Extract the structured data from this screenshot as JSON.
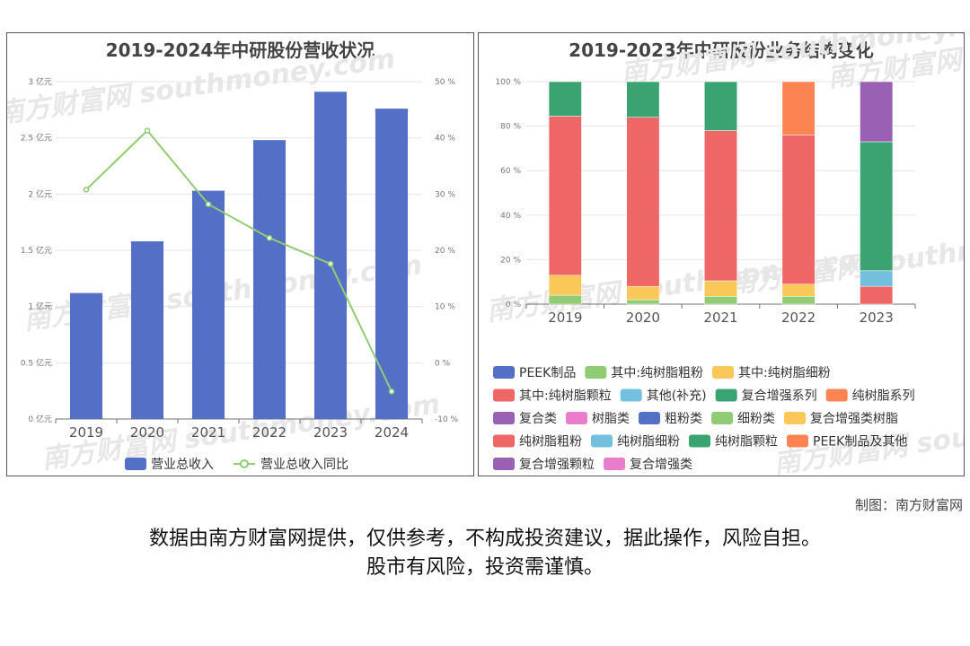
{
  "watermark": "南方财富网 southmoney.com",
  "credit": "制图：南方财富网",
  "disclaimer": {
    "line1": "数据由南方财富网提供，仅供参考，不构成投资建议，据此操作，风险自担。",
    "line2": "股市有风险，投资需谨慎。"
  },
  "colors": {
    "bar_blue": "#5470c6",
    "line_green": "#91cc75",
    "red": "#ee6666",
    "yellow": "#fac858",
    "dark_green": "#3ba272",
    "orange": "#fc8452",
    "purple": "#9a60b4",
    "sky": "#73c0de",
    "pink": "#ea7ccc"
  },
  "chart_data": [
    {
      "type": "bar",
      "title": "2019-2024年中研股份营收状况",
      "categories": [
        "2019",
        "2020",
        "2021",
        "2022",
        "2023",
        "2024"
      ],
      "y_ticks": [
        "0 亿元",
        "0.5 亿元",
        "1 亿元",
        "1.5 亿元",
        "2 亿元",
        "2.5 亿元",
        "3 亿元"
      ],
      "y2_ticks": [
        "-10 %",
        "0 %",
        "10 %",
        "20 %",
        "30 %",
        "40 %",
        "50 %"
      ],
      "ylim": [
        0,
        3
      ],
      "y2lim": [
        -10,
        50
      ],
      "grid": true,
      "legend_position": "bottom",
      "series": [
        {
          "name": "营业总收入",
          "kind": "bar",
          "axis": "left",
          "color": "#5470c6",
          "values": [
            1.12,
            1.58,
            2.03,
            2.48,
            2.91,
            2.76
          ]
        },
        {
          "name": "营业总收入同比",
          "kind": "line",
          "axis": "right",
          "color": "#91cc75",
          "values": [
            30.8,
            41.3,
            28.2,
            22.2,
            17.6,
            -5.1
          ]
        }
      ]
    },
    {
      "type": "bar",
      "stacked": true,
      "title": "2019-2023年中研股份业务结构变化",
      "categories": [
        "2019",
        "2020",
        "2021",
        "2022",
        "2023"
      ],
      "y_ticks": [
        "0 %",
        "20 %",
        "40 %",
        "60 %",
        "80 %",
        "100 %"
      ],
      "ylim": [
        0,
        100
      ],
      "grid": true,
      "legend_position": "bottom",
      "series": [
        {
          "name": "PEEK制品",
          "color": "#5470c6",
          "values": [
            0,
            0,
            0,
            0,
            0
          ]
        },
        {
          "name": "其中:纯树脂粗粉",
          "color": "#91cc75",
          "values": [
            4,
            2,
            3.5,
            3.5,
            0
          ]
        },
        {
          "name": "其中:纯树脂细粉",
          "color": "#fac858",
          "values": [
            9,
            6,
            7,
            5.5,
            0
          ]
        },
        {
          "name": "其中:纯树脂颗粒",
          "color": "#ee6666",
          "values": [
            71.5,
            76,
            67.5,
            67,
            8
          ]
        },
        {
          "name": "其他(补充)",
          "color": "#73c0de",
          "values": [
            0,
            0,
            0,
            0,
            7
          ]
        },
        {
          "name": "复合增强系列",
          "color": "#3ba272",
          "values": [
            15.5,
            16,
            22,
            0,
            58
          ]
        },
        {
          "name": "纯树脂系列",
          "color": "#fc8452",
          "values": [
            0,
            0,
            0,
            24,
            0
          ]
        },
        {
          "name": "复合类",
          "color": "#9a60b4",
          "values": [
            0,
            0,
            0,
            0,
            27
          ]
        },
        {
          "name": "树脂类",
          "color": "#ea7ccc",
          "values": [
            0,
            0,
            0,
            0,
            0
          ]
        },
        {
          "name": "粗粉类",
          "color": "#5470c6",
          "values": [
            0,
            0,
            0,
            0,
            0
          ]
        },
        {
          "name": "细粉类",
          "color": "#91cc75",
          "values": [
            0,
            0,
            0,
            0,
            0
          ]
        },
        {
          "name": "复合增强类树脂",
          "color": "#fac858",
          "values": [
            0,
            0,
            0,
            0,
            0
          ]
        },
        {
          "name": "纯树脂粗粉",
          "color": "#ee6666",
          "values": [
            0,
            0,
            0,
            0,
            0
          ]
        },
        {
          "name": "纯树脂细粉",
          "color": "#73c0de",
          "values": [
            0,
            0,
            0,
            0,
            0
          ]
        },
        {
          "name": "纯树脂颗粒",
          "color": "#3ba272",
          "values": [
            0,
            0,
            0,
            0,
            0
          ]
        },
        {
          "name": "PEEK制品及其他",
          "color": "#fc8452",
          "values": [
            0,
            0,
            0,
            0,
            0
          ]
        },
        {
          "name": "复合增强颗粒",
          "color": "#9a60b4",
          "values": [
            0,
            0,
            0,
            0,
            0
          ]
        },
        {
          "name": "复合增强类",
          "color": "#ea7ccc",
          "values": [
            0,
            0,
            0,
            0,
            0
          ]
        }
      ]
    }
  ]
}
